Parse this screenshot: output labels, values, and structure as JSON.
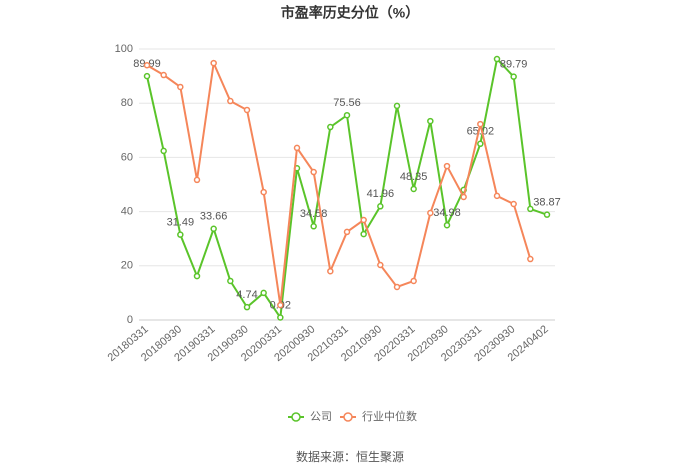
{
  "chart_data": {
    "type": "line",
    "title": "市盈率历史分位（%）",
    "categories": [
      "20180331",
      null,
      "20180930",
      null,
      "20190331",
      null,
      "20190930",
      null,
      "20200331",
      null,
      "20200930",
      null,
      "20210331",
      null,
      "20210930",
      null,
      "20220331",
      null,
      "20220930",
      null,
      "20230331",
      null,
      "20230930",
      null,
      "20240402"
    ],
    "series": [
      {
        "name": "公司",
        "color": "#5ac42a",
        "values": [
          89.99,
          62.4,
          31.49,
          16.2,
          33.66,
          14.4,
          4.74,
          10,
          0.92,
          56,
          34.58,
          71.2,
          75.56,
          31.7,
          41.96,
          79,
          48.35,
          73.4,
          34.98,
          48,
          65.02,
          96.3,
          89.79,
          41,
          38.87
        ],
        "value_labels": [
          "89.99",
          null,
          "31.49",
          null,
          "33.66",
          null,
          "4.74",
          null,
          "0.92",
          null,
          "34.58",
          null,
          "75.56",
          null,
          "41.96",
          null,
          "48.35",
          null,
          "34.98",
          null,
          "65.02",
          null,
          "89.79",
          null,
          "38.87"
        ]
      },
      {
        "name": "行业中位数",
        "color": "#f5865a",
        "values": [
          94,
          90.4,
          86,
          51.7,
          94.8,
          80.8,
          77.5,
          47.2,
          5.5,
          63.5,
          54.6,
          18,
          32.5,
          36.9,
          20.3,
          12.2,
          14.4,
          39.5,
          56.8,
          45.4,
          72.3,
          45.8,
          42.8,
          22.5,
          null
        ]
      }
    ],
    "ylim": [
      0,
      100
    ],
    "yticks": [
      0,
      20,
      40,
      60,
      80,
      100
    ],
    "grid": true,
    "source": "数据来源：恒生聚源"
  }
}
